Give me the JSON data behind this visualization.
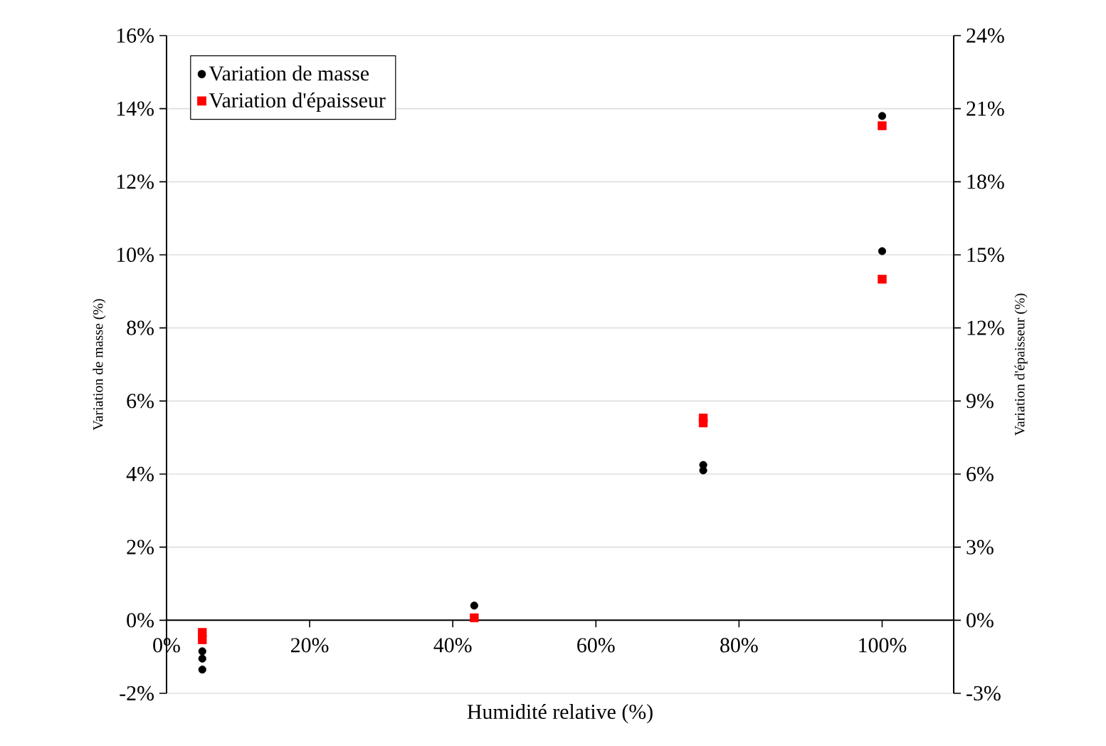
{
  "chart_data": {
    "type": "scatter",
    "xlabel": "Humidité relative (%)",
    "ylabel": "Variation de masse (%)",
    "y2label": "Variation d'épaisseur (%)",
    "xlim": [
      0,
      110
    ],
    "xticks": [
      {
        "value": 0,
        "label": "0%"
      },
      {
        "value": 20,
        "label": "20%"
      },
      {
        "value": 40,
        "label": "40%"
      },
      {
        "value": 60,
        "label": "60%"
      },
      {
        "value": 80,
        "label": "80%"
      },
      {
        "value": 100,
        "label": "100%"
      }
    ],
    "ylim": [
      -2,
      16
    ],
    "yticks": [
      {
        "value": -2,
        "label": "-2%"
      },
      {
        "value": 0,
        "label": "0%"
      },
      {
        "value": 2,
        "label": "2%"
      },
      {
        "value": 4,
        "label": "4%"
      },
      {
        "value": 6,
        "label": "6%"
      },
      {
        "value": 8,
        "label": "8%"
      },
      {
        "value": 10,
        "label": "10%"
      },
      {
        "value": 12,
        "label": "12%"
      },
      {
        "value": 14,
        "label": "14%"
      },
      {
        "value": 16,
        "label": "16%"
      }
    ],
    "y2lim": [
      -3,
      24
    ],
    "y2ticks": [
      {
        "value": -3,
        "label": "-3%"
      },
      {
        "value": 0,
        "label": "0%"
      },
      {
        "value": 3,
        "label": "3%"
      },
      {
        "value": 6,
        "label": "6%"
      },
      {
        "value": 9,
        "label": "9%"
      },
      {
        "value": 12,
        "label": "12%"
      },
      {
        "value": 15,
        "label": "15%"
      },
      {
        "value": 18,
        "label": "18%"
      },
      {
        "value": 21,
        "label": "21%"
      },
      {
        "value": 24,
        "label": "24%"
      }
    ],
    "grid": "y",
    "legend": "top left",
    "series": [
      {
        "name": "Variation de masse",
        "color": "#000000",
        "marker": "circle",
        "x": [
          5,
          5,
          5,
          43,
          75,
          75,
          100,
          100
        ],
        "values": [
          -0.85,
          -1.05,
          -1.35,
          0.4,
          4.25,
          4.1,
          13.8,
          10.1
        ]
      },
      {
        "name": "Variation d'épaisseur",
        "color": "#ff0000",
        "marker": "square",
        "axis": "y2",
        "x": [
          5,
          5,
          43,
          75,
          75,
          100,
          100
        ],
        "values": [
          -0.5,
          -0.8,
          0.1,
          8.3,
          8.1,
          20.3,
          14.0
        ]
      }
    ]
  }
}
